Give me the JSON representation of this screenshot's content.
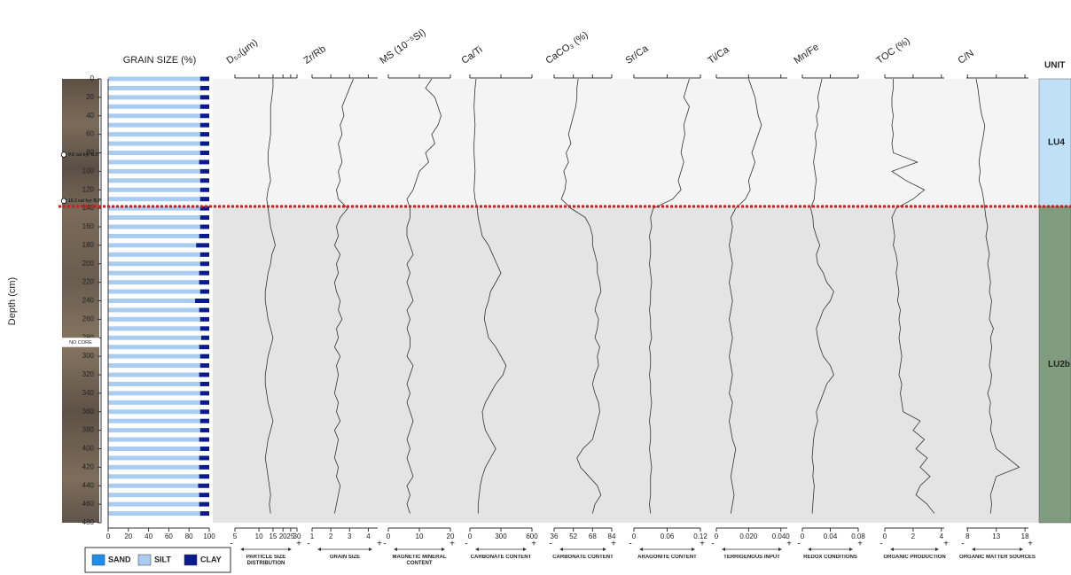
{
  "chart_data": {
    "type": "multi-panel",
    "ylabel": "Depth (cm)",
    "ylim": [
      0,
      480
    ],
    "yticks": [
      0,
      20,
      40,
      60,
      80,
      100,
      120,
      140,
      160,
      180,
      200,
      220,
      240,
      260,
      280,
      300,
      320,
      340,
      360,
      380,
      400,
      420,
      440,
      460,
      480
    ],
    "depths": [
      0,
      10,
      20,
      30,
      40,
      50,
      60,
      70,
      80,
      90,
      100,
      110,
      120,
      130,
      140,
      150,
      160,
      170,
      180,
      190,
      200,
      210,
      220,
      230,
      240,
      250,
      260,
      270,
      280,
      290,
      300,
      310,
      320,
      330,
      340,
      350,
      360,
      370,
      380,
      390,
      400,
      410,
      420,
      430,
      440,
      450,
      460,
      470
    ],
    "ages": [
      {
        "label": "9.6 cal kyr B.P.",
        "depth": 82
      },
      {
        "label": "10.3 cal kyr B.P.",
        "depth": 132
      }
    ],
    "no_core": {
      "label": "NO CORE",
      "from": 280,
      "to": 290
    },
    "boundary": 138,
    "units_title": "UNIT",
    "units": [
      {
        "label": "LU4",
        "from": 0,
        "to": 138,
        "color": "#bfe0f7"
      },
      {
        "label": "LU2b",
        "from": 138,
        "to": 480,
        "color": "#7f9c7e"
      }
    ],
    "direction_labels": [
      "-",
      "+"
    ],
    "grain_size": {
      "type": "stacked-bar",
      "title": "GRAIN SIZE (%)",
      "xlim": [
        0,
        100
      ],
      "xticks": [
        0,
        20,
        40,
        60,
        80,
        100
      ],
      "series": [
        {
          "name": "SAND",
          "color": "#1f8ee8",
          "values": [
            0,
            0,
            0,
            0,
            0,
            0,
            0,
            0,
            0,
            0,
            0,
            0,
            0,
            0,
            0,
            0,
            0,
            0,
            0,
            0,
            0,
            0,
            0,
            0,
            0,
            0,
            0,
            0,
            0,
            0,
            0,
            0,
            0,
            0,
            0,
            0,
            0,
            0,
            0,
            0,
            0,
            0,
            0,
            0,
            0,
            0,
            0,
            0
          ]
        },
        {
          "name": "SILT",
          "color": "#a9cdf2",
          "values": [
            91,
            91,
            91,
            91,
            91,
            91,
            91,
            91,
            91,
            90,
            91,
            91,
            91,
            91,
            91,
            91,
            91,
            90,
            87,
            91,
            91,
            90,
            90,
            91,
            86,
            90,
            91,
            91,
            92,
            90,
            91,
            91,
            90,
            91,
            91,
            91,
            91,
            91,
            91,
            90,
            91,
            90,
            90,
            90,
            89,
            90,
            90,
            91
          ]
        },
        {
          "name": "CLAY",
          "color": "#0b1a8c",
          "values": [
            9,
            9,
            9,
            9,
            9,
            9,
            9,
            9,
            9,
            10,
            9,
            9,
            9,
            9,
            9,
            9,
            9,
            10,
            13,
            9,
            9,
            10,
            10,
            9,
            14,
            10,
            9,
            9,
            8,
            10,
            9,
            9,
            10,
            9,
            9,
            9,
            9,
            9,
            9,
            10,
            9,
            10,
            10,
            10,
            11,
            10,
            10,
            9
          ]
        }
      ]
    },
    "panels": [
      {
        "type": "line",
        "title": "D₅₀(µm)",
        "log_scale": true,
        "xlim": [
          5,
          30
        ],
        "xticks": [
          5,
          10,
          15,
          20,
          25,
          30
        ],
        "label": "PARTICLE SIZE DISTRIBUTION",
        "values": [
          15,
          15,
          14.5,
          14,
          14,
          14,
          14,
          13.5,
          13,
          13,
          13.5,
          14,
          13,
          12.5,
          13,
          13.5,
          14,
          15,
          16,
          14.5,
          14,
          13,
          12.5,
          12,
          12,
          12.5,
          13,
          14,
          15,
          14,
          13,
          12.5,
          12,
          12,
          12.5,
          13,
          14,
          15,
          14,
          13,
          12.5,
          12,
          12.5,
          13,
          13.5,
          14,
          13.5,
          14
        ]
      },
      {
        "type": "line",
        "title": "Zr/Rb",
        "xlim": [
          1,
          4.5
        ],
        "xticks": [
          1,
          2,
          3,
          4
        ],
        "label": "GRAIN SIZE",
        "values": [
          3.2,
          3.0,
          2.8,
          2.6,
          2.7,
          2.5,
          2.6,
          2.4,
          2.5,
          2.6,
          2.4,
          2.5,
          2.3,
          2.4,
          2.9,
          2.5,
          2.3,
          2.4,
          2.2,
          2.5,
          2.3,
          2.4,
          2.2,
          2.3,
          2.5,
          2.4,
          2.6,
          2.3,
          2.4,
          2.2,
          2.5,
          2.3,
          2.4,
          2.3,
          2.2,
          2.4,
          2.3,
          2.5,
          2.2,
          2.4,
          2.3,
          2.2,
          2.4,
          2.3,
          2.5,
          2.4,
          2.3,
          2.2
        ]
      },
      {
        "type": "line",
        "title": "MS (10⁻⁵SI)",
        "xlim": [
          0,
          20
        ],
        "xticks": [
          0,
          10,
          20
        ],
        "label": "MAGNETIC MINERAL CONTENT",
        "values": [
          14,
          12,
          15,
          16,
          17,
          16,
          14,
          15,
          12,
          13,
          10,
          9,
          8,
          6,
          7,
          7,
          6,
          6,
          7,
          8,
          6,
          7,
          6,
          7,
          8,
          6,
          7,
          6,
          7,
          7,
          6,
          8,
          7,
          6,
          7,
          6,
          7,
          8,
          7,
          6,
          7,
          6,
          7,
          8,
          6,
          7,
          6,
          7
        ]
      },
      {
        "type": "line",
        "title": "Ca/Ti",
        "xlim": [
          0,
          600
        ],
        "xticks": [
          0,
          300,
          600
        ],
        "label": "CARBONATE CONTENT",
        "values": [
          60,
          50,
          45,
          40,
          45,
          50,
          45,
          40,
          40,
          45,
          50,
          45,
          40,
          50,
          70,
          80,
          100,
          120,
          180,
          220,
          260,
          300,
          250,
          200,
          180,
          150,
          140,
          160,
          180,
          250,
          300,
          350,
          320,
          250,
          200,
          150,
          120,
          130,
          150,
          200,
          250,
          200,
          150,
          120,
          100,
          90,
          80,
          80
        ]
      },
      {
        "type": "line",
        "title": "CaCO₃ (%)",
        "xlim": [
          36,
          84
        ],
        "xticks": [
          36,
          52,
          68,
          84
        ],
        "label": "CARBONATE CONTENT",
        "values": [
          56,
          55,
          55,
          54,
          52,
          50,
          48,
          50,
          46,
          48,
          44,
          46,
          45,
          42,
          50,
          62,
          66,
          68,
          68,
          70,
          72,
          72,
          74,
          75,
          72,
          70,
          73,
          72,
          70,
          74,
          72,
          73,
          70,
          68,
          70,
          73,
          74,
          72,
          70,
          68,
          60,
          55,
          58,
          65,
          72,
          75,
          70,
          68
        ]
      },
      {
        "type": "line",
        "title": "Sr/Ca",
        "xlim": [
          0,
          0.12
        ],
        "xticks": [
          0,
          0.06,
          0.12
        ],
        "label": "ARAGONITE CONTENT",
        "values": [
          0.1,
          0.095,
          0.09,
          0.1,
          0.095,
          0.09,
          0.092,
          0.088,
          0.085,
          0.09,
          0.085,
          0.08,
          0.085,
          0.07,
          0.035,
          0.03,
          0.032,
          0.028,
          0.03,
          0.03,
          0.028,
          0.03,
          0.032,
          0.03,
          0.03,
          0.028,
          0.03,
          0.03,
          0.032,
          0.028,
          0.03,
          0.03,
          0.028,
          0.03,
          0.03,
          0.032,
          0.03,
          0.028,
          0.03,
          0.03,
          0.028,
          0.03,
          0.032,
          0.03,
          0.03,
          0.03,
          0.028,
          0.03
        ]
      },
      {
        "type": "line",
        "title": "Ti/Ca",
        "xlim": [
          0,
          0.044
        ],
        "xticks": [
          0,
          {
            "value": 0.02,
            "label": "0.020"
          },
          {
            "value": 0.04,
            "label": "0.040"
          }
        ],
        "label": "TERRIGENOUS INPUT",
        "values": [
          0.02,
          0.022,
          0.024,
          0.025,
          0.026,
          0.028,
          0.026,
          0.024,
          0.022,
          0.024,
          0.022,
          0.02,
          0.021,
          0.018,
          0.012,
          0.009,
          0.01,
          0.009,
          0.008,
          0.009,
          0.01,
          0.009,
          0.008,
          0.009,
          0.01,
          0.009,
          0.008,
          0.009,
          0.01,
          0.009,
          0.008,
          0.009,
          0.01,
          0.009,
          0.008,
          0.01,
          0.009,
          0.008,
          0.009,
          0.01,
          0.012,
          0.011,
          0.01,
          0.009,
          0.01,
          0.011,
          0.01,
          0.009
        ]
      },
      {
        "type": "line",
        "title": "Mn/Fe",
        "xlim": [
          0,
          0.08
        ],
        "xticks": [
          0,
          0.04,
          0.08
        ],
        "label": "REDOX CONDITIONS",
        "values": [
          0.028,
          0.025,
          0.022,
          0.024,
          0.02,
          0.022,
          0.018,
          0.02,
          0.018,
          0.016,
          0.018,
          0.02,
          0.018,
          0.017,
          0.012,
          0.015,
          0.016,
          0.02,
          0.025,
          0.02,
          0.022,
          0.03,
          0.035,
          0.045,
          0.04,
          0.03,
          0.025,
          0.02,
          0.022,
          0.025,
          0.03,
          0.04,
          0.045,
          0.035,
          0.03,
          0.025,
          0.02,
          0.022,
          0.018,
          0.016,
          0.015,
          0.014,
          0.016,
          0.015,
          0.017,
          0.016,
          0.015,
          0.014
        ]
      },
      {
        "type": "line",
        "title": "TOC (%)",
        "xlim": [
          0,
          4.2
        ],
        "xticks": [
          0,
          2,
          4
        ],
        "label": "ORGANIC PRODUCTION",
        "values": [
          0.6,
          0.6,
          0.5,
          0.5,
          0.6,
          0.5,
          0.6,
          0.5,
          0.6,
          2.3,
          0.5,
          1.5,
          2.8,
          2.0,
          0.8,
          0.5,
          0.6,
          0.7,
          0.6,
          0.8,
          0.9,
          0.8,
          0.9,
          1.0,
          0.9,
          1.1,
          1.0,
          1.1,
          1.0,
          1.1,
          1.2,
          1.1,
          1.0,
          1.2,
          1.1,
          1.2,
          1.3,
          2.5,
          2.0,
          2.8,
          2.2,
          3.0,
          2.5,
          3.2,
          2.5,
          2.2,
          3.0,
          3.5
        ]
      },
      {
        "type": "line",
        "title": "C/N",
        "xlim": [
          7.8,
          18.6
        ],
        "xticks": [
          8,
          13,
          18
        ],
        "label": "ORGANIC MATTER SOURCES",
        "values": [
          9.5,
          9.8,
          10,
          10.2,
          10.5,
          11,
          10.8,
          10.5,
          10.2,
          10,
          10.2,
          10,
          10.5,
          10.8,
          11,
          11.2,
          11.5,
          11.2,
          11.5,
          11.8,
          11.5,
          11.8,
          12,
          11.8,
          12.2,
          12,
          11.8,
          12.5,
          12,
          12.2,
          12,
          11.8,
          12.2,
          12,
          11.5,
          12,
          11.8,
          12.2,
          12,
          12.5,
          13,
          15,
          17,
          13,
          12.5,
          12,
          12.2,
          12
        ]
      }
    ]
  }
}
